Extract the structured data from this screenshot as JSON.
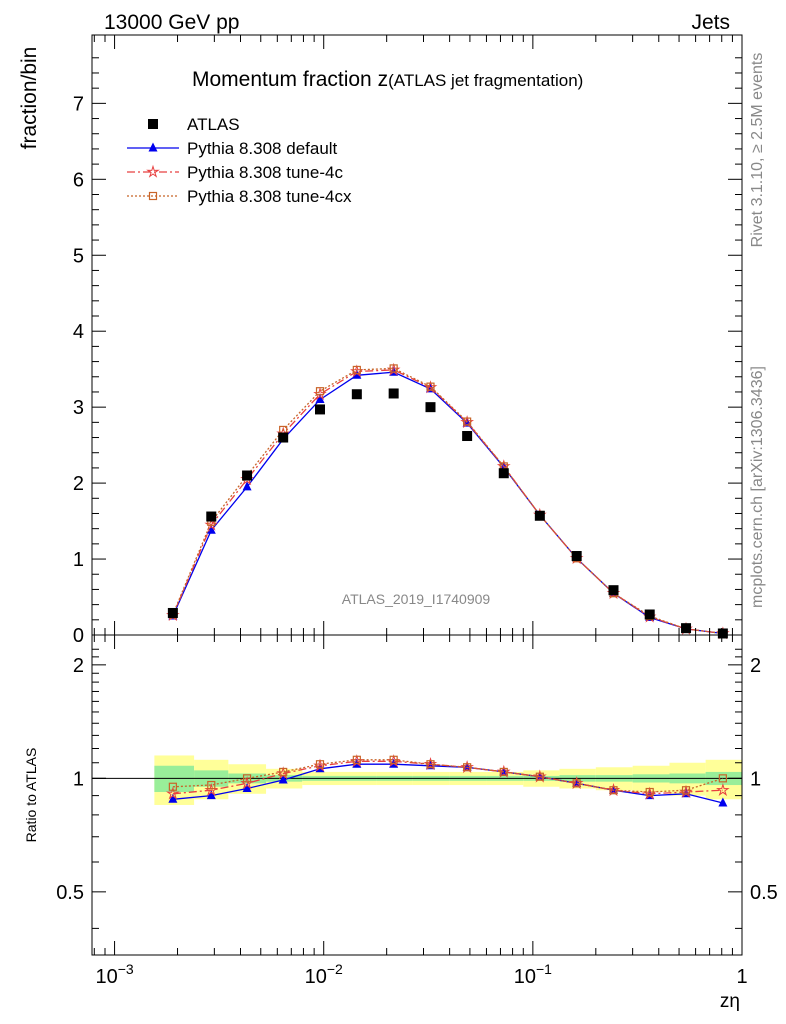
{
  "header": {
    "left": "13000 GeV pp",
    "right": "Jets"
  },
  "side": {
    "rivet": "Rivet 3.1.10, ≥ 2.5M events",
    "mcplots": "mcplots.cern.ch [arXiv:1306.3436]"
  },
  "watermark": "ATLAS_2019_I1740909",
  "chart_data": [
    {
      "type": "line",
      "title_main": "Momentum fraction z",
      "title_sub": "(ATLAS jet fragmentation)",
      "ylabel": "fraction/bin",
      "xscale": "log",
      "xlim": [
        0.00078,
        1.0
      ],
      "ylim": [
        0,
        7.9
      ],
      "yticks": [
        {
          "v": 0,
          "label": "0"
        },
        {
          "v": 1,
          "label": "1"
        },
        {
          "v": 2,
          "label": "2"
        },
        {
          "v": 3,
          "label": "3"
        },
        {
          "v": 4,
          "label": "4"
        },
        {
          "v": 5,
          "label": "5"
        },
        {
          "v": 6,
          "label": "6"
        },
        {
          "v": 7,
          "label": "7"
        }
      ],
      "legend_position": "top-left",
      "x": [
        0.0019,
        0.0029,
        0.0043,
        0.0064,
        0.0096,
        0.0144,
        0.0216,
        0.0324,
        0.0485,
        0.0726,
        0.108,
        0.162,
        0.243,
        0.362,
        0.54,
        0.81
      ],
      "series": [
        {
          "name": "ATLAS",
          "style": "data",
          "color": "#000000",
          "values": [
            0.29,
            1.56,
            2.1,
            2.6,
            2.97,
            3.17,
            3.18,
            3.0,
            2.62,
            2.13,
            1.57,
            1.04,
            0.59,
            0.27,
            0.09,
            0.02
          ]
        },
        {
          "name": "Pythia 8.308 default",
          "style": "solid",
          "marker": "triangle",
          "color": "#0000ee",
          "values": [
            0.25,
            1.38,
            1.95,
            2.58,
            3.1,
            3.42,
            3.46,
            3.24,
            2.79,
            2.21,
            1.58,
            1.01,
            0.55,
            0.23,
            0.08,
            0.02
          ]
        },
        {
          "name": "Pythia 8.308 tune-4c",
          "style": "dashdot",
          "marker": "star",
          "color": "#e84040",
          "values": [
            0.26,
            1.45,
            2.05,
            2.65,
            3.17,
            3.47,
            3.49,
            3.26,
            2.8,
            2.22,
            1.58,
            1.01,
            0.55,
            0.24,
            0.08,
            0.02
          ]
        },
        {
          "name": "Pythia 8.308 tune-4cx",
          "style": "dotted",
          "marker": "square-open",
          "color": "#c86428",
          "values": [
            0.27,
            1.49,
            2.1,
            2.7,
            3.21,
            3.49,
            3.51,
            3.27,
            2.81,
            2.22,
            1.58,
            1.01,
            0.55,
            0.25,
            0.08,
            0.02
          ]
        }
      ]
    },
    {
      "type": "line",
      "ylabel": "Ratio to ATLAS",
      "xlabel": "zη",
      "xscale": "log",
      "xlim": [
        0.00078,
        1.0
      ],
      "ylim": [
        0.34,
        2.4
      ],
      "yscale": "log",
      "yticks": [
        {
          "v": 0.5,
          "label": "0.5"
        },
        {
          "v": 1,
          "label": "1"
        },
        {
          "v": 2,
          "label": "2"
        }
      ],
      "xticks": [
        {
          "v": 0.001,
          "base": "10",
          "exp": "−3"
        },
        {
          "v": 0.01,
          "base": "10",
          "exp": "−2"
        },
        {
          "v": 0.1,
          "base": "10",
          "exp": "−1"
        },
        {
          "v": 1,
          "base": "1",
          "exp": ""
        }
      ],
      "band_edges": [
        0.00155,
        0.0024,
        0.0035,
        0.0053,
        0.0079,
        0.0119,
        0.0178,
        0.0267,
        0.04,
        0.06,
        0.09,
        0.134,
        0.2,
        0.3,
        0.45,
        0.67,
        1.0
      ],
      "band_inner": [
        0.08,
        0.05,
        0.03,
        0.02,
        0.015,
        0.015,
        0.015,
        0.015,
        0.015,
        0.015,
        0.015,
        0.02,
        0.02,
        0.025,
        0.03,
        0.04
      ],
      "band_outer": [
        0.15,
        0.12,
        0.09,
        0.06,
        0.04,
        0.04,
        0.04,
        0.04,
        0.04,
        0.04,
        0.05,
        0.06,
        0.07,
        0.08,
        0.1,
        0.12
      ],
      "x": [
        0.0019,
        0.0029,
        0.0043,
        0.0064,
        0.0096,
        0.0144,
        0.0216,
        0.0324,
        0.0485,
        0.0726,
        0.108,
        0.162,
        0.243,
        0.362,
        0.54,
        0.81
      ],
      "series": [
        {
          "name": "Pythia 8.308 default",
          "style": "solid",
          "marker": "triangle",
          "color": "#0000ee",
          "values": [
            0.88,
            0.9,
            0.94,
            0.99,
            1.06,
            1.09,
            1.09,
            1.08,
            1.07,
            1.04,
            1.01,
            0.97,
            0.93,
            0.9,
            0.91,
            0.86
          ]
        },
        {
          "name": "Pythia 8.308 tune-4c",
          "style": "dashdot",
          "marker": "star",
          "color": "#e84040",
          "values": [
            0.91,
            0.93,
            0.97,
            1.03,
            1.08,
            1.11,
            1.11,
            1.09,
            1.07,
            1.04,
            1.01,
            0.97,
            0.93,
            0.91,
            0.92,
            0.93
          ]
        },
        {
          "name": "Pythia 8.308 tune-4cx",
          "style": "dotted",
          "marker": "square-open",
          "color": "#c86428",
          "values": [
            0.95,
            0.96,
            1.0,
            1.04,
            1.09,
            1.12,
            1.12,
            1.09,
            1.07,
            1.04,
            1.01,
            0.97,
            0.93,
            0.92,
            0.93,
            1.0
          ]
        }
      ]
    }
  ]
}
